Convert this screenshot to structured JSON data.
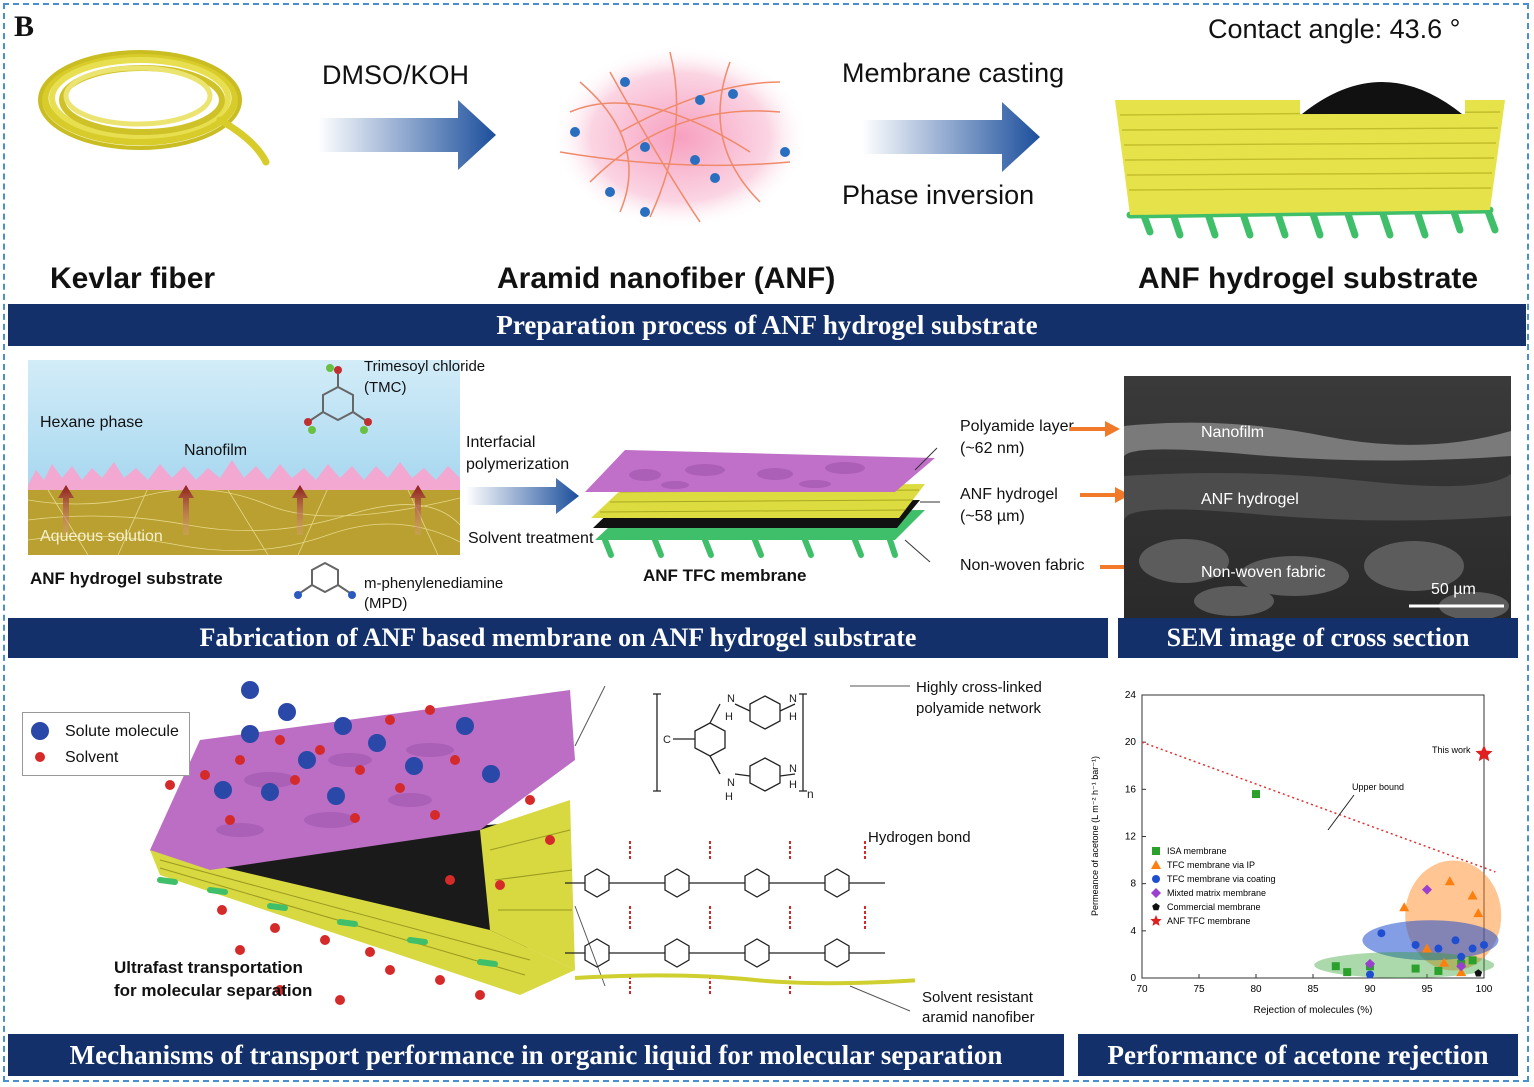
{
  "panel_letter": "B",
  "row1": {
    "contact_angle": "Contact angle: 43.6 °",
    "step1": "DMSO/KOH",
    "step2a": "Membrane casting",
    "step2b": "Phase inversion",
    "kevlar": "Kevlar fiber",
    "anf": "Aramid nanofiber (ANF)",
    "substrate": "ANF hydrogel substrate",
    "banner": "Preparation process of ANF hydrogel substrate"
  },
  "row2": {
    "tmc": "Trimesoyl chloride",
    "tmc_abbr": "(TMC)",
    "hexane": "Hexane phase",
    "nanofilm": "Nanofilm",
    "aqueous": "Aqueous solution",
    "substrate": "ANF hydrogel substrate",
    "mpd": "m-phenylenediamine",
    "mpd_abbr": "(MPD)",
    "ip1": "Interfacial",
    "ip2": "polymerization",
    "solvent_treatment": "Solvent treatment",
    "tfc": "ANF TFC membrane",
    "pa_layer": "Polyamide layer",
    "pa_thick": "(~62 nm)",
    "anf_hydrogel": "ANF hydrogel",
    "anf_thick": "(~58 µm)",
    "nonwoven": "Non-woven fabric",
    "sem_nanofilm": "Nanofilm",
    "sem_anf": "ANF hydrogel",
    "sem_nonwoven": "Non-woven fabric",
    "scale": "50 µm",
    "banner_left": "Fabrication of ANF based membrane on ANF hydrogel substrate",
    "banner_right": "SEM image of cross section"
  },
  "row3": {
    "legend_solute": "Solute molecule",
    "legend_solvent": "Solvent",
    "ultrafast1": "Ultrafast transportation",
    "ultrafast2": "for molecular separation",
    "crosslinked1": "Highly cross-linked",
    "crosslinked2": "polyamide network",
    "n_label": "n",
    "hbond": "Hydrogen bond",
    "resistant1": "Solvent resistant",
    "resistant2": "aramid nanofiber",
    "banner_left": "Mechanisms of transport performance in organic liquid for molecular separation",
    "banner_right": "Performance of acetone rejection"
  },
  "colors": {
    "banner": "#13306b",
    "arrow": "#1c4f9c",
    "orange_arrow": "#f07a2a",
    "isa": "#2ca02c",
    "tfc_ip": "#ff7f0e",
    "tfc_coating": "#1f4fd0",
    "mixed": "#9b3fd0",
    "commercial": "#111111",
    "anf_tfc": "#e02020"
  },
  "chart_data": {
    "type": "scatter",
    "xlabel": "Rejection of molecules (%)",
    "ylabel": "Permeance of acetone (L m⁻² h⁻¹ bar⁻¹)",
    "xlim": [
      70,
      100
    ],
    "ylim": [
      0,
      24
    ],
    "xticks": [
      "70",
      "75",
      "80",
      "85",
      "90",
      "95",
      "100"
    ],
    "yticks": [
      "0",
      "4",
      "8",
      "12",
      "16",
      "20",
      "24"
    ],
    "upper_bound_label": "Upper bound",
    "upper_bound_line": [
      [
        70,
        20
      ],
      [
        101,
        9
      ]
    ],
    "this_work_label": "This work",
    "legend_position": "center-left",
    "series": [
      {
        "name": "ISA membrane",
        "marker": "square",
        "color": "#2ca02c",
        "points": [
          [
            80,
            15.6
          ],
          [
            87,
            1.0
          ],
          [
            88,
            0.5
          ],
          [
            90,
            1.0
          ],
          [
            94,
            0.8
          ],
          [
            96,
            0.6
          ],
          [
            98,
            1.2
          ],
          [
            99,
            1.5
          ]
        ]
      },
      {
        "name": "TFC membrane via IP",
        "marker": "triangle",
        "color": "#ff7f0e",
        "points": [
          [
            93,
            6.0
          ],
          [
            95,
            2.5
          ],
          [
            97,
            8.2
          ],
          [
            99,
            7.0
          ],
          [
            99.5,
            5.5
          ],
          [
            98,
            0.5
          ],
          [
            96.5,
            1.3
          ]
        ]
      },
      {
        "name": "TFC membrane via coating",
        "marker": "circle",
        "color": "#1f4fd0",
        "points": [
          [
            91,
            3.8
          ],
          [
            94,
            2.8
          ],
          [
            96,
            2.5
          ],
          [
            97.5,
            3.2
          ],
          [
            98,
            1.8
          ],
          [
            99,
            2.5
          ],
          [
            100,
            2.8
          ],
          [
            90,
            0.3
          ]
        ]
      },
      {
        "name": "Mixted matrix membrane",
        "marker": "diamond",
        "color": "#9b3fd0",
        "points": [
          [
            95,
            7.5
          ],
          [
            90,
            1.2
          ],
          [
            98,
            1.0
          ]
        ]
      },
      {
        "name": "Commercial membrane",
        "marker": "pentagon",
        "color": "#111111",
        "points": [
          [
            99.5,
            0.4
          ]
        ]
      },
      {
        "name": "ANF TFC membrane",
        "marker": "star",
        "color": "#e02020",
        "points": [
          [
            100,
            19
          ]
        ]
      }
    ]
  }
}
